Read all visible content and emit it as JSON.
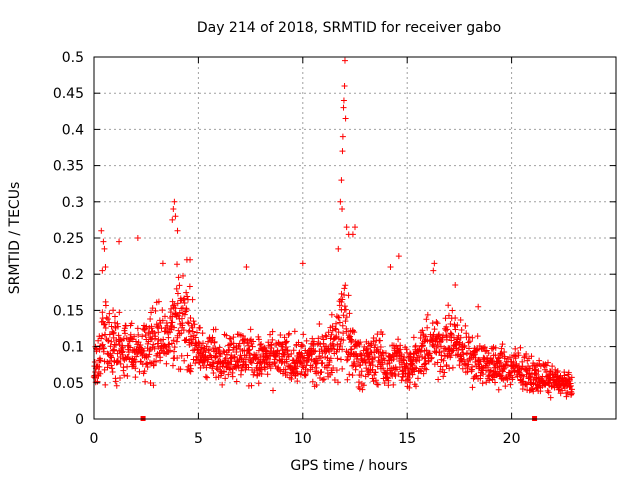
{
  "chart_data": {
    "type": "scatter",
    "title": "Day 214 of 2018, SRMTID for receiver gabo",
    "xlabel": "GPS time / hours",
    "ylabel": "SRMTID / TECUs",
    "xlim": [
      0,
      25
    ],
    "ylim": [
      0,
      0.5
    ],
    "x_ticks": [
      0,
      5,
      10,
      15,
      20
    ],
    "x_tick_labels": [
      "0",
      "5",
      "10",
      "15",
      "20"
    ],
    "y_ticks": [
      0,
      0.05,
      0.1,
      0.15,
      0.2,
      0.25,
      0.3,
      0.35,
      0.4,
      0.45,
      0.5
    ],
    "y_tick_labels": [
      "0",
      "0.05",
      "0.1",
      "0.15",
      "0.2",
      "0.25",
      "0.3",
      "0.35",
      "0.4",
      "0.45",
      "0.5"
    ],
    "grid": true,
    "marker": "+",
    "color": "#ff0000",
    "time_span_hours": [
      0,
      22.9
    ],
    "data_gap_markers_x": [
      2.35,
      21.1
    ],
    "series": [
      {
        "name": "SRMTID",
        "envelope_x": [
          0,
          0.5,
          1,
          1.5,
          2,
          2.5,
          3,
          3.5,
          3.9,
          4.5,
          5,
          6,
          7,
          8,
          9,
          10,
          11,
          11.5,
          11.8,
          12,
          12.2,
          12.5,
          13,
          13.5,
          14,
          14.5,
          15,
          15.5,
          16,
          16.5,
          17,
          17.5,
          18,
          19,
          20,
          21,
          22,
          22.9
        ],
        "envelope_base": [
          0.07,
          0.11,
          0.1,
          0.095,
          0.09,
          0.1,
          0.11,
          0.12,
          0.14,
          0.13,
          0.09,
          0.085,
          0.09,
          0.08,
          0.085,
          0.08,
          0.09,
          0.1,
          0.12,
          0.13,
          0.11,
          0.09,
          0.08,
          0.085,
          0.075,
          0.08,
          0.075,
          0.085,
          0.1,
          0.1,
          0.11,
          0.1,
          0.085,
          0.075,
          0.07,
          0.06,
          0.055,
          0.045
        ],
        "envelope_spread": [
          0.03,
          0.06,
          0.05,
          0.045,
          0.04,
          0.05,
          0.05,
          0.05,
          0.07,
          0.06,
          0.04,
          0.035,
          0.04,
          0.035,
          0.035,
          0.035,
          0.04,
          0.05,
          0.08,
          0.12,
          0.05,
          0.04,
          0.035,
          0.04,
          0.035,
          0.035,
          0.03,
          0.035,
          0.04,
          0.045,
          0.05,
          0.045,
          0.035,
          0.03,
          0.03,
          0.025,
          0.02,
          0.015
        ],
        "peak_points": [
          [
            0.35,
            0.26
          ],
          [
            0.45,
            0.245
          ],
          [
            0.5,
            0.235
          ],
          [
            0.55,
            0.21
          ],
          [
            0.4,
            0.205
          ],
          [
            1.2,
            0.245
          ],
          [
            2.1,
            0.25
          ],
          [
            3.3,
            0.215
          ],
          [
            3.75,
            0.275
          ],
          [
            3.8,
            0.29
          ],
          [
            3.85,
            0.3
          ],
          [
            3.9,
            0.28
          ],
          [
            4.0,
            0.26
          ],
          [
            4.45,
            0.22
          ],
          [
            4.6,
            0.22
          ],
          [
            7.3,
            0.21
          ],
          [
            10.0,
            0.215
          ],
          [
            11.7,
            0.235
          ],
          [
            11.8,
            0.3
          ],
          [
            11.85,
            0.33
          ],
          [
            11.9,
            0.37
          ],
          [
            11.92,
            0.39
          ],
          [
            11.95,
            0.43
          ],
          [
            11.97,
            0.44
          ],
          [
            12.0,
            0.46
          ],
          [
            12.02,
            0.495
          ],
          [
            12.05,
            0.415
          ],
          [
            11.88,
            0.29
          ],
          [
            12.1,
            0.265
          ],
          [
            12.2,
            0.255
          ],
          [
            12.4,
            0.255
          ],
          [
            12.5,
            0.265
          ],
          [
            14.2,
            0.21
          ],
          [
            14.6,
            0.225
          ],
          [
            16.3,
            0.215
          ],
          [
            16.25,
            0.205
          ],
          [
            17.3,
            0.185
          ],
          [
            18.4,
            0.155
          ]
        ]
      }
    ]
  }
}
